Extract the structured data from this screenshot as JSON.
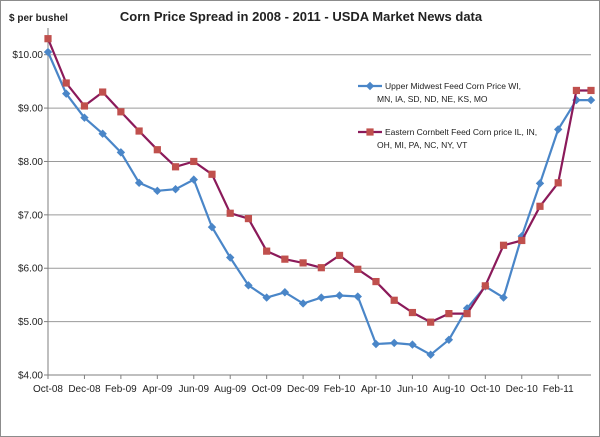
{
  "chart_data": {
    "type": "line",
    "title": "Corn Price Spread in 2008 - 2011 - USDA Market News data",
    "ylabel": "$ per bushel",
    "xlabel": "",
    "ylim": [
      4,
      10.5
    ],
    "y_ticks": [
      4,
      5,
      6,
      7,
      8,
      9,
      10
    ],
    "y_tick_labels": [
      "$4.00",
      "$5.00",
      "$6.00",
      "$7.00",
      "$8.00",
      "$9.00",
      "$10.00"
    ],
    "x_tick_labels": [
      "Oct-08",
      "Dec-08",
      "Feb-09",
      "Apr-09",
      "Jun-09",
      "Aug-09",
      "Oct-09",
      "Dec-09",
      "Feb-10",
      "Apr-10",
      "Jun-10",
      "Aug-10",
      "Oct-10",
      "Dec-10",
      "Feb-11"
    ],
    "x_tick_positions": [
      0,
      2,
      4,
      6,
      8,
      10,
      12,
      14,
      16,
      18,
      20,
      22,
      24,
      26,
      28
    ],
    "grid": "horizontal",
    "legend_position": "right",
    "series": [
      {
        "name": "Upper Midwest",
        "legend_lines": [
          "Upper Midwest    Feed Corn Price   WI,",
          "MN, IA, SD, ND, NE, KS, MO"
        ],
        "color": "#4a86c8",
        "marker": "diamond",
        "x": [
          0,
          1,
          2,
          3,
          4,
          5,
          6,
          7,
          8,
          9,
          10,
          11,
          12,
          13,
          14,
          15,
          16,
          17,
          18,
          19,
          20,
          21,
          22,
          23,
          24,
          25,
          26,
          27,
          28,
          29,
          29.8
        ],
        "values": [
          10.05,
          9.27,
          8.82,
          8.52,
          8.17,
          7.6,
          7.45,
          7.48,
          7.66,
          6.77,
          6.2,
          5.68,
          5.45,
          5.55,
          5.34,
          5.45,
          5.49,
          5.47,
          4.58,
          4.6,
          4.57,
          4.38,
          4.66,
          5.25,
          5.66,
          5.45,
          6.6,
          7.59,
          8.6,
          9.15,
          9.15
        ]
      },
      {
        "name": "Eastern Cornbelt",
        "legend_lines": [
          "Eastern Cornbelt    Feed Corn price IL, IN,",
          "OH, MI, PA, NC, NY, VT"
        ],
        "color": "#8b1a5a",
        "marker_color": "#c0504d",
        "marker": "square",
        "x": [
          0,
          1,
          2,
          3,
          4,
          5,
          6,
          7,
          8,
          9,
          10,
          11,
          12,
          13,
          14,
          15,
          16,
          17,
          18,
          19,
          20,
          21,
          22,
          23,
          24,
          25,
          26,
          27,
          28,
          29,
          29.8
        ],
        "values": [
          10.3,
          9.47,
          9.04,
          9.3,
          8.93,
          8.57,
          8.22,
          7.9,
          8.0,
          7.76,
          7.03,
          6.93,
          6.32,
          6.17,
          6.1,
          6.01,
          6.24,
          5.98,
          5.75,
          5.4,
          5.17,
          4.99,
          5.15,
          5.15,
          5.67,
          6.43,
          6.52,
          7.16,
          7.6,
          9.33,
          9.33
        ]
      }
    ]
  }
}
